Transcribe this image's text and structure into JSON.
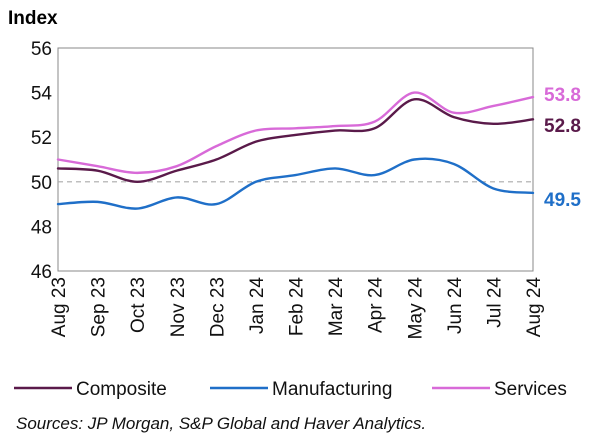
{
  "chart_data": {
    "type": "line",
    "ylabel": "Index",
    "ylim": [
      46,
      56
    ],
    "yticks": [
      46,
      48,
      50,
      52,
      54,
      56
    ],
    "categories": [
      "Aug 23",
      "Sep 23",
      "Oct 23",
      "Nov 23",
      "Dec 23",
      "Jan 24",
      "Feb 24",
      "Mar 24",
      "Apr 24",
      "May 24",
      "Jun 24",
      "Jul 24",
      "Aug 24"
    ],
    "reference_line": 50,
    "series": [
      {
        "name": "Composite",
        "color": "#5a1a4a",
        "values": [
          50.6,
          50.5,
          50.0,
          50.5,
          51.0,
          51.8,
          52.1,
          52.3,
          52.4,
          53.7,
          52.9,
          52.6,
          52.8
        ],
        "end_label": "52.8"
      },
      {
        "name": "Manufacturing",
        "color": "#1f6fc8",
        "values": [
          49.0,
          49.1,
          48.8,
          49.3,
          49.0,
          50.0,
          50.3,
          50.6,
          50.3,
          51.0,
          50.8,
          49.7,
          49.5
        ],
        "end_label": "49.5"
      },
      {
        "name": "Services",
        "color": "#d86ad8",
        "values": [
          51.0,
          50.7,
          50.4,
          50.7,
          51.6,
          52.3,
          52.4,
          52.5,
          52.7,
          54.0,
          53.1,
          53.4,
          53.8
        ],
        "end_label": "53.8"
      }
    ],
    "legend_position": "bottom",
    "grid": false
  },
  "source_text": "Sources: JP Morgan, S&P Global and Haver Analytics."
}
